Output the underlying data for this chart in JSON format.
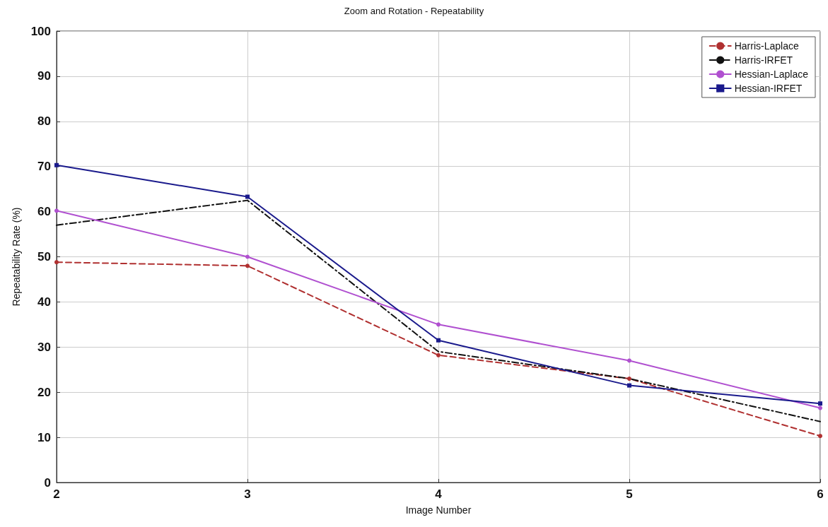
{
  "chart_data": {
    "type": "line",
    "title": "Zoom and Rotation - Repeatability",
    "xlabel": "Image Number",
    "ylabel": "Repeatability Rate (%)",
    "x": [
      2,
      3,
      4,
      5,
      6
    ],
    "xlim": [
      2,
      6
    ],
    "xticks": [
      2,
      3,
      4,
      5,
      6
    ],
    "ylim": [
      0,
      100
    ],
    "yticks": [
      0,
      10,
      20,
      30,
      40,
      50,
      60,
      70,
      80,
      90,
      100
    ],
    "grid": true,
    "legend": "top right",
    "series": [
      {
        "name": "Harris-Laplace",
        "color": "#b03030",
        "line_style": "dashed",
        "marker": "circle",
        "values": [
          48.8,
          48,
          28.2,
          23,
          10.3
        ]
      },
      {
        "name": "Harris-IRFET",
        "color": "#111111",
        "line_style": "dashdot",
        "marker": "none",
        "values": [
          57,
          62.5,
          29,
          23,
          13.5
        ]
      },
      {
        "name": "Hessian-Laplace",
        "color": "#b050d0",
        "line_style": "solid",
        "marker": "circle",
        "values": [
          60.2,
          50,
          35,
          27,
          16.5
        ]
      },
      {
        "name": "Hessian-IRFET",
        "color": "#1a1a8c",
        "line_style": "solid",
        "marker": "square",
        "values": [
          70.3,
          63.3,
          31.5,
          21.5,
          17.5
        ]
      }
    ]
  }
}
